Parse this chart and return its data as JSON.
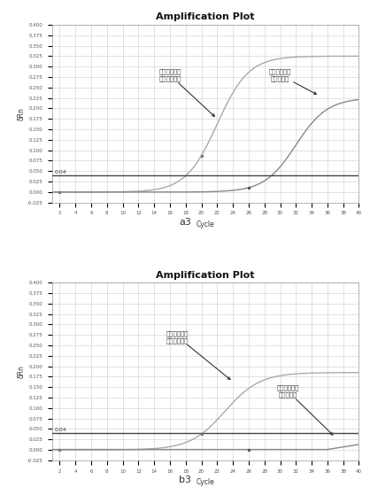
{
  "title": "Amplification Plot",
  "xlabel": "Cycle",
  "ylabel": "δRn",
  "yticks": [
    -0.025,
    0.0,
    0.025,
    0.05,
    0.075,
    0.1,
    0.125,
    0.15,
    0.175,
    0.2,
    0.225,
    0.25,
    0.275,
    0.3,
    0.325,
    0.35,
    0.375,
    0.4
  ],
  "xlim": [
    1,
    40
  ],
  "ylim": [
    -0.025,
    0.4
  ],
  "threshold": 0.04,
  "threshold_label": "0.04",
  "grid_color": "#cccccc",
  "background_color": "#ffffff",
  "line_color_wt": "#aaaaaa",
  "line_color_mut": "#888888",
  "subplot_labels": [
    "a3",
    "b3"
  ],
  "annot1_line1": "等位基因非特",
  "annot1_line2": "异性扩增曲线",
  "annot2_line1": "等位基因特异",
  "annot2_line2": "性扩增曲线"
}
